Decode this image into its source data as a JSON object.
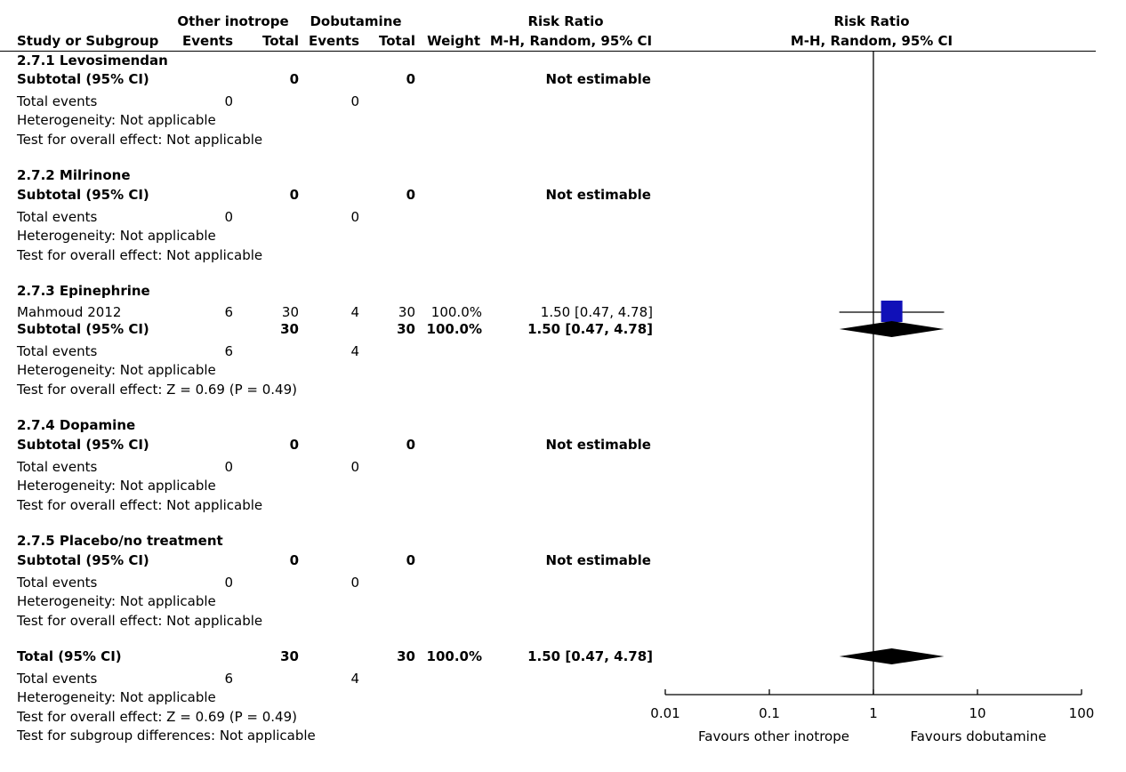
{
  "header": {
    "group1": "Other inotrope",
    "group2": "Dobutamine",
    "study_col": "Study or Subgroup",
    "events": "Events",
    "total": "Total",
    "weight": "Weight",
    "rr_title": "Risk Ratio",
    "rr_method": "M-H, Random, 95% CI",
    "plot_title": "Risk Ratio",
    "plot_method": "M-H, Random, 95% CI"
  },
  "subgroups": [
    {
      "title": "2.7.1 Levosimendan",
      "subtotal": {
        "label": "Subtotal (95% CI)",
        "total1": "0",
        "total2": "0",
        "weight": "",
        "rr": "Not estimable"
      },
      "events": {
        "label": "Total events",
        "e1": "0",
        "e2": "0"
      },
      "heterogeneity": "Heterogeneity: Not applicable",
      "overall": "Test for overall effect: Not applicable"
    },
    {
      "title": "2.7.2 Milrinone",
      "subtotal": {
        "label": "Subtotal (95% CI)",
        "total1": "0",
        "total2": "0",
        "weight": "",
        "rr": "Not estimable"
      },
      "events": {
        "label": "Total events",
        "e1": "0",
        "e2": "0"
      },
      "heterogeneity": "Heterogeneity: Not applicable",
      "overall": "Test for overall effect: Not applicable"
    },
    {
      "title": "2.7.3 Epinephrine",
      "study": {
        "name": "Mahmoud 2012",
        "e1": "6",
        "t1": "30",
        "e2": "4",
        "t2": "30",
        "weight": "100.0%",
        "rr": "1.50 [0.47, 4.78]"
      },
      "subtotal": {
        "label": "Subtotal (95% CI)",
        "total1": "30",
        "total2": "30",
        "weight": "100.0%",
        "rr": "1.50 [0.47, 4.78]"
      },
      "events": {
        "label": "Total events",
        "e1": "6",
        "e2": "4"
      },
      "heterogeneity": "Heterogeneity: Not applicable",
      "overall": "Test for overall effect: Z = 0.69 (P = 0.49)"
    },
    {
      "title": "2.7.4 Dopamine",
      "subtotal": {
        "label": "Subtotal (95% CI)",
        "total1": "0",
        "total2": "0",
        "weight": "",
        "rr": "Not estimable"
      },
      "events": {
        "label": "Total events",
        "e1": "0",
        "e2": "0"
      },
      "heterogeneity": "Heterogeneity: Not applicable",
      "overall": "Test for overall effect: Not applicable"
    },
    {
      "title": "2.7.5 Placebo/no treatment",
      "subtotal": {
        "label": "Subtotal (95% CI)",
        "total1": "0",
        "total2": "0",
        "weight": "",
        "rr": "Not estimable"
      },
      "events": {
        "label": "Total events",
        "e1": "0",
        "e2": "0"
      },
      "heterogeneity": "Heterogeneity: Not applicable",
      "overall": "Test for overall effect: Not applicable"
    }
  ],
  "total": {
    "label": "Total (95% CI)",
    "total1": "30",
    "total2": "30",
    "weight": "100.0%",
    "rr": "1.50 [0.47, 4.78]",
    "events": {
      "label": "Total events",
      "e1": "6",
      "e2": "4"
    },
    "heterogeneity": "Heterogeneity: Not applicable",
    "overall": "Test for overall effect: Z = 0.69 (P = 0.49)",
    "subgroup_diff": "Test for subgroup differences: Not applicable"
  },
  "axis": {
    "favours_left": "Favours other inotrope",
    "favours_right": "Favours dobutamine"
  },
  "colors": {
    "study_square": "#1010b8",
    "diamond": "#000000",
    "line": "#000000"
  },
  "chart_data": {
    "type": "forest",
    "title": "Risk Ratio",
    "subtitle": "M-H, Random, 95% CI",
    "x_scale": "log",
    "xlim": [
      0.01,
      100
    ],
    "ticks": [
      0.01,
      0.1,
      1,
      10,
      100
    ],
    "tick_labels": [
      "0.01",
      "0.1",
      "1",
      "10",
      "100"
    ],
    "reference_line": 1,
    "estimates": [
      {
        "label": "Mahmoud 2012",
        "kind": "study",
        "rr": 1.5,
        "ci": [
          0.47,
          4.78
        ],
        "weight": 100.0
      },
      {
        "label": "Subtotal (95% CI)",
        "kind": "subtotal",
        "rr": 1.5,
        "ci": [
          0.47,
          4.78
        ]
      },
      {
        "label": "Total (95% CI)",
        "kind": "total",
        "rr": 1.5,
        "ci": [
          0.47,
          4.78
        ]
      }
    ]
  }
}
